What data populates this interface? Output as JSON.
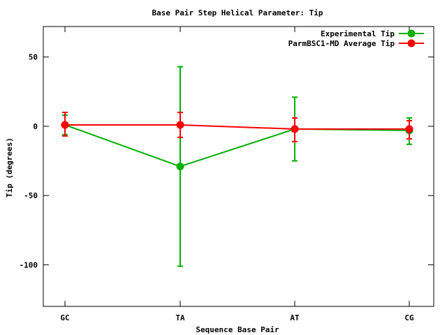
{
  "chart_data": {
    "type": "line",
    "title": "Base Pair Step Helical Parameter: Tip",
    "xlabel": "Sequence Base Pair",
    "ylabel": "Tip (degrees)",
    "categories": [
      "GC",
      "TA",
      "AT",
      "CG"
    ],
    "ylim": [
      -130,
      72
    ],
    "yticks": [
      50,
      0,
      -50,
      -100
    ],
    "ytick_labels": [
      "50",
      "0",
      "-50",
      "-100"
    ],
    "grid": false,
    "legend_position": "top-right",
    "series": [
      {
        "name": "Experimental Tip",
        "color": "#00b000",
        "values": [
          1,
          -29,
          -2,
          -3
        ],
        "err_low": [
          -6,
          -101,
          -25,
          -13
        ],
        "err_high": [
          8,
          43,
          21,
          6
        ]
      },
      {
        "name": "ParmBSC1-MD Average Tip",
        "color": "#ff0000",
        "values": [
          1,
          1,
          -2,
          -2
        ],
        "err_low": [
          -7,
          -8,
          -11,
          -9
        ],
        "err_high": [
          10,
          10,
          6,
          4
        ]
      }
    ]
  }
}
